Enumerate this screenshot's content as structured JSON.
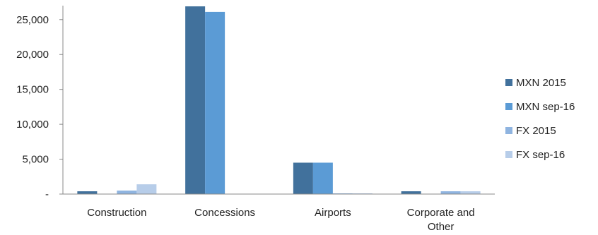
{
  "chart_data": {
    "type": "bar",
    "categories": [
      [
        "Construction"
      ],
      [
        "Concessions"
      ],
      [
        "Airports"
      ],
      [
        "Corporate and",
        "Other"
      ]
    ],
    "series": [
      {
        "name": "MXN 2015",
        "color": "#41719C",
        "values": [
          400,
          26900,
          4500,
          400
        ]
      },
      {
        "name": "MXN sep-16",
        "color": "#5B9BD5",
        "values": [
          0,
          26100,
          4500,
          0
        ]
      },
      {
        "name": "FX 2015",
        "color": "#8FB4E0",
        "values": [
          500,
          0,
          100,
          400
        ]
      },
      {
        "name": "FX sep-16",
        "color": "#B7CDE9",
        "values": [
          1400,
          0,
          100,
          400
        ]
      }
    ],
    "ylim": [
      0,
      27000
    ],
    "yticks": [
      0,
      5000,
      10000,
      15000,
      20000,
      25000
    ],
    "ytick_labels": [
      "-",
      "5,000",
      "10,000",
      "15,000",
      "20,000",
      "25,000"
    ],
    "legend_position": "right",
    "grid": false
  }
}
